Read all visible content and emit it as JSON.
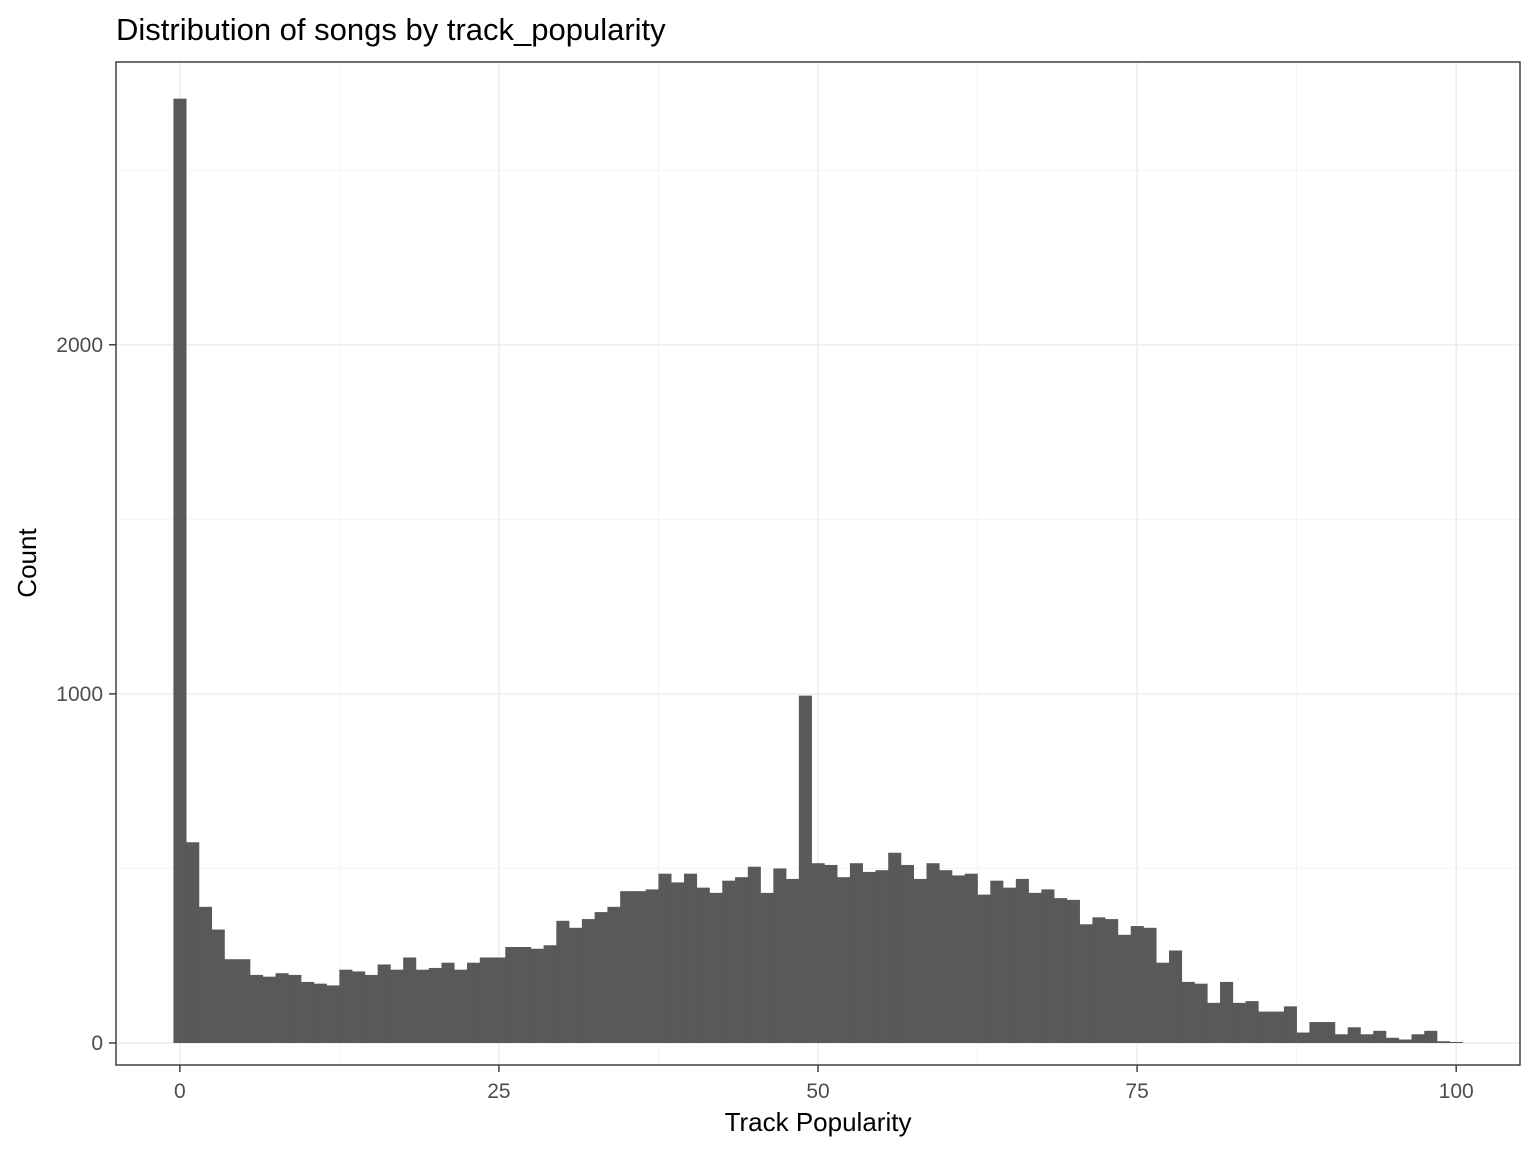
{
  "chart_data": {
    "type": "bar",
    "title": "Distribution of songs by track_popularity",
    "xlabel": "Track Popularity",
    "ylabel": "Count",
    "xlim": [
      -5,
      105
    ],
    "ylim": [
      -63,
      2810
    ],
    "x_ticks": [
      0,
      25,
      50,
      75,
      100
    ],
    "x_tick_labels": [
      "0",
      "25",
      "50",
      "75",
      "100"
    ],
    "y_ticks": [
      0,
      1000,
      2000
    ],
    "y_tick_labels": [
      "0",
      "1000",
      "2000"
    ],
    "grid": true,
    "bin_width": 1,
    "x": [
      0,
      1,
      2,
      3,
      4,
      5,
      6,
      7,
      8,
      9,
      10,
      11,
      12,
      13,
      14,
      15,
      16,
      17,
      18,
      19,
      20,
      21,
      22,
      23,
      24,
      25,
      26,
      27,
      28,
      29,
      30,
      31,
      32,
      33,
      34,
      35,
      36,
      37,
      38,
      39,
      40,
      41,
      42,
      43,
      44,
      45,
      46,
      47,
      48,
      49,
      50,
      51,
      52,
      53,
      54,
      55,
      56,
      57,
      58,
      59,
      60,
      61,
      62,
      63,
      64,
      65,
      66,
      67,
      68,
      69,
      70,
      71,
      72,
      73,
      74,
      75,
      76,
      77,
      78,
      79,
      80,
      81,
      82,
      83,
      84,
      85,
      86,
      87,
      88,
      89,
      90,
      91,
      92,
      93,
      94,
      95,
      96,
      97,
      98,
      99,
      100
    ],
    "values": [
      2705,
      575,
      390,
      325,
      240,
      240,
      195,
      190,
      200,
      195,
      175,
      170,
      165,
      210,
      205,
      195,
      225,
      210,
      245,
      210,
      215,
      230,
      210,
      230,
      245,
      245,
      275,
      275,
      270,
      280,
      350,
      330,
      355,
      375,
      390,
      435,
      435,
      440,
      485,
      460,
      485,
      445,
      430,
      465,
      475,
      505,
      430,
      500,
      470,
      995,
      515,
      510,
      475,
      515,
      490,
      495,
      545,
      510,
      470,
      515,
      495,
      480,
      485,
      425,
      465,
      445,
      470,
      430,
      440,
      415,
      410,
      340,
      360,
      355,
      310,
      335,
      330,
      230,
      265,
      175,
      170,
      115,
      175,
      115,
      120,
      90,
      90,
      105,
      30,
      60,
      60,
      25,
      45,
      25,
      35,
      15,
      10,
      25,
      35,
      5,
      3
    ]
  }
}
